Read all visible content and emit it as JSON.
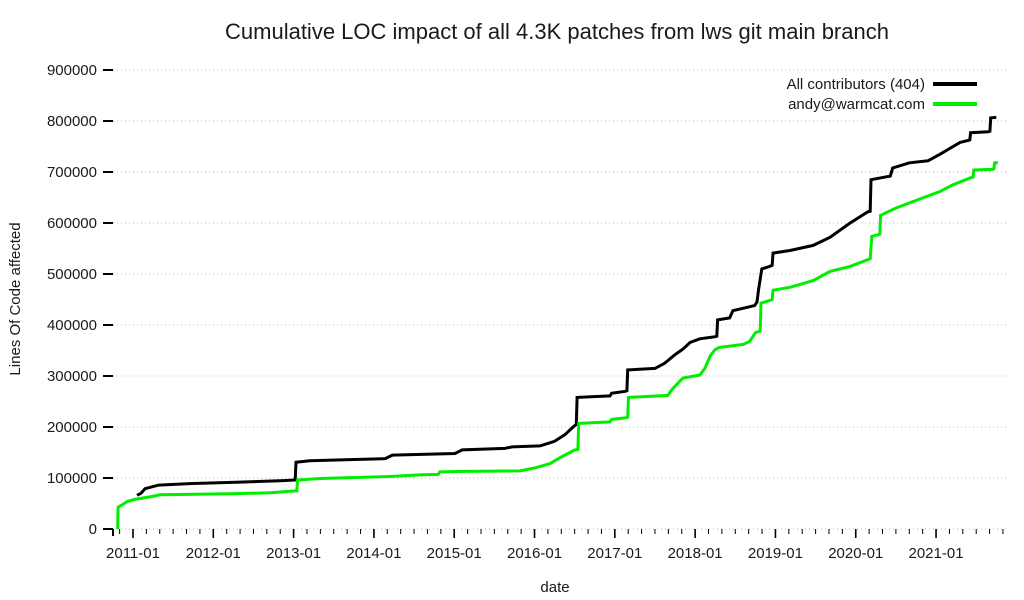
{
  "chart_data": {
    "type": "line",
    "title": "Cumulative LOC impact of all 4.3K patches from lws git main branch",
    "xlabel": "date",
    "ylabel": "Lines Of Code affected",
    "x_tick_labels": [
      "2011-01",
      "2012-01",
      "2013-01",
      "2014-01",
      "2015-01",
      "2016-01",
      "2017-01",
      "2018-01",
      "2019-01",
      "2020-01",
      "2021-01"
    ],
    "x_major_years": [
      2011,
      2012,
      2013,
      2014,
      2015,
      2016,
      2017,
      2018,
      2019,
      2020,
      2021
    ],
    "x_minor_interval_months": 2,
    "xlim": [
      2010.751,
      2021.896
    ],
    "ylim": [
      0,
      900000
    ],
    "y_ticks": [
      0,
      100000,
      200000,
      300000,
      400000,
      500000,
      600000,
      700000,
      800000,
      900000
    ],
    "grid": "horizontal-dotted",
    "grid_color": "#b9b9b9",
    "legend_position": "top-right",
    "series": [
      {
        "name": "All contributors (404)",
        "color": "#000000",
        "points": [
          [
            2011.05,
            66000
          ],
          [
            2011.1,
            70000
          ],
          [
            2011.15,
            79000
          ],
          [
            2011.32,
            86000
          ],
          [
            2011.7,
            89000
          ],
          [
            2012.33,
            92000
          ],
          [
            2012.87,
            95000
          ],
          [
            2013.02,
            96000
          ],
          [
            2013.03,
            131000
          ],
          [
            2013.2,
            134000
          ],
          [
            2014.14,
            138000
          ],
          [
            2014.23,
            145000
          ],
          [
            2015.01,
            148000
          ],
          [
            2015.1,
            155000
          ],
          [
            2015.63,
            158000
          ],
          [
            2015.72,
            161000
          ],
          [
            2016.07,
            163000
          ],
          [
            2016.25,
            172000
          ],
          [
            2016.38,
            185000
          ],
          [
            2016.48,
            200000
          ],
          [
            2016.52,
            205000
          ],
          [
            2016.53,
            258000
          ],
          [
            2016.94,
            261000
          ],
          [
            2016.96,
            266000
          ],
          [
            2017.13,
            270000
          ],
          [
            2017.15,
            271000
          ],
          [
            2017.16,
            312000
          ],
          [
            2017.5,
            315000
          ],
          [
            2017.62,
            325000
          ],
          [
            2017.75,
            342000
          ],
          [
            2017.85,
            353000
          ],
          [
            2017.94,
            366000
          ],
          [
            2018.06,
            373000
          ],
          [
            2018.25,
            377000
          ],
          [
            2018.27,
            378000
          ],
          [
            2018.28,
            410000
          ],
          [
            2018.43,
            414000
          ],
          [
            2018.47,
            428000
          ],
          [
            2018.74,
            438000
          ],
          [
            2018.77,
            445000
          ],
          [
            2018.79,
            470000
          ],
          [
            2018.81,
            490000
          ],
          [
            2018.83,
            510000
          ],
          [
            2018.93,
            515000
          ],
          [
            2018.96,
            517000
          ],
          [
            2018.97,
            541000
          ],
          [
            2019.18,
            546000
          ],
          [
            2019.47,
            556000
          ],
          [
            2019.68,
            572000
          ],
          [
            2019.93,
            600000
          ],
          [
            2020.05,
            612000
          ],
          [
            2020.15,
            622000
          ],
          [
            2020.18,
            623000
          ],
          [
            2020.19,
            685000
          ],
          [
            2020.43,
            692000
          ],
          [
            2020.46,
            708000
          ],
          [
            2020.67,
            718000
          ],
          [
            2020.9,
            722000
          ],
          [
            2021.05,
            735000
          ],
          [
            2021.17,
            746000
          ],
          [
            2021.3,
            758000
          ],
          [
            2021.4,
            762000
          ],
          [
            2021.42,
            763000
          ],
          [
            2021.43,
            777000
          ],
          [
            2021.65,
            779000
          ],
          [
            2021.67,
            780000
          ],
          [
            2021.68,
            806000
          ],
          [
            2021.75,
            807000
          ]
        ]
      },
      {
        "name": "andy@warmcat.com",
        "color": "#00ee00",
        "points": [
          [
            2010.81,
            0
          ],
          [
            2010.815,
            43000
          ],
          [
            2010.86,
            47000
          ],
          [
            2010.93,
            54000
          ],
          [
            2011.02,
            58000
          ],
          [
            2011.21,
            63000
          ],
          [
            2011.34,
            67000
          ],
          [
            2012.21,
            69000
          ],
          [
            2012.71,
            71000
          ],
          [
            2012.96,
            74000
          ],
          [
            2013.04,
            75000
          ],
          [
            2013.05,
            96000
          ],
          [
            2013.33,
            99000
          ],
          [
            2014.2,
            103000
          ],
          [
            2014.57,
            106000
          ],
          [
            2014.8,
            107000
          ],
          [
            2014.82,
            112000
          ],
          [
            2015.13,
            113000
          ],
          [
            2015.82,
            114000
          ],
          [
            2016.01,
            120000
          ],
          [
            2016.19,
            128000
          ],
          [
            2016.32,
            140000
          ],
          [
            2016.44,
            150000
          ],
          [
            2016.5,
            155000
          ],
          [
            2016.54,
            156000
          ],
          [
            2016.55,
            207000
          ],
          [
            2016.94,
            210000
          ],
          [
            2016.96,
            215000
          ],
          [
            2017.14,
            218000
          ],
          [
            2017.16,
            219000
          ],
          [
            2017.17,
            258000
          ],
          [
            2017.66,
            262000
          ],
          [
            2017.72,
            275000
          ],
          [
            2017.81,
            290000
          ],
          [
            2017.85,
            296000
          ],
          [
            2018.06,
            302000
          ],
          [
            2018.12,
            315000
          ],
          [
            2018.19,
            340000
          ],
          [
            2018.25,
            352000
          ],
          [
            2018.3,
            356000
          ],
          [
            2018.6,
            362000
          ],
          [
            2018.68,
            368000
          ],
          [
            2018.75,
            385000
          ],
          [
            2018.81,
            388000
          ],
          [
            2018.82,
            443000
          ],
          [
            2018.93,
            448000
          ],
          [
            2018.96,
            450000
          ],
          [
            2018.97,
            468000
          ],
          [
            2019.18,
            474000
          ],
          [
            2019.47,
            487000
          ],
          [
            2019.68,
            505000
          ],
          [
            2019.93,
            515000
          ],
          [
            2020.15,
            528000
          ],
          [
            2020.18,
            530000
          ],
          [
            2020.2,
            574000
          ],
          [
            2020.26,
            576000
          ],
          [
            2020.3,
            578000
          ],
          [
            2020.31,
            615000
          ],
          [
            2020.51,
            630000
          ],
          [
            2020.76,
            645000
          ],
          [
            2021.05,
            662000
          ],
          [
            2021.21,
            675000
          ],
          [
            2021.42,
            688000
          ],
          [
            2021.46,
            690000
          ],
          [
            2021.47,
            704000
          ],
          [
            2021.7,
            705000
          ],
          [
            2021.72,
            706000
          ],
          [
            2021.73,
            718000
          ],
          [
            2021.77,
            718000
          ]
        ]
      }
    ]
  }
}
